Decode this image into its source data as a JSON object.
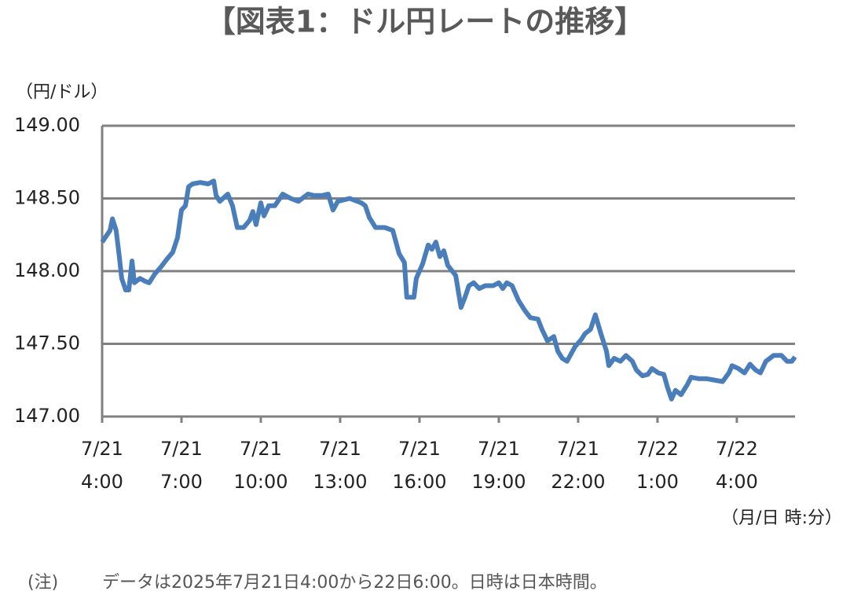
{
  "chart_data": {
    "type": "line",
    "title": "【図表1：ドル円レートの推移】",
    "y_label": "（円/ドル）",
    "x_label": "（月/日 時:分）",
    "note_label": "(注)",
    "note": "データは2025年7月21日4:00から22日6:00。日時は日本時間。",
    "xlim": [
      4,
      30.2
    ],
    "xticks": [
      {
        "value": 4,
        "label": "7/21\n4:00"
      },
      {
        "value": 7,
        "label": "7/21\n7:00"
      },
      {
        "value": 10,
        "label": "7/21\n10:00"
      },
      {
        "value": 13,
        "label": "7/21\n13:00"
      },
      {
        "value": 16,
        "label": "7/21\n16:00"
      },
      {
        "value": 19,
        "label": "7/21\n19:00"
      },
      {
        "value": 22,
        "label": "7/21\n22:00"
      },
      {
        "value": 25,
        "label": "7/22\n1:00"
      },
      {
        "value": 28,
        "label": "7/22\n4:00"
      }
    ],
    "ylim": [
      147,
      149
    ],
    "yticks": [
      {
        "value": 147,
        "label": "147.00"
      },
      {
        "value": 147.5,
        "label": "147.50"
      },
      {
        "value": 148,
        "label": "148.00"
      },
      {
        "value": 148.5,
        "label": "148.50"
      },
      {
        "value": 149,
        "label": "149.00"
      }
    ],
    "grid": true,
    "series": [
      {
        "color": "#4a7ebb",
        "x": [
          4.0,
          4.3,
          4.39,
          4.53,
          4.65,
          4.74,
          4.89,
          5.01,
          5.13,
          5.22,
          5.43,
          5.63,
          5.78,
          5.99,
          6.23,
          6.44,
          6.67,
          6.85,
          7.0,
          7.15,
          7.27,
          7.42,
          7.71,
          8.01,
          8.22,
          8.31,
          8.45,
          8.75,
          8.93,
          9.11,
          9.35,
          9.58,
          9.7,
          9.82,
          10.0,
          10.12,
          10.3,
          10.53,
          10.83,
          11.13,
          11.42,
          11.78,
          12.02,
          12.32,
          12.55,
          12.73,
          12.91,
          13.36,
          13.8,
          13.95,
          14.1,
          14.34,
          14.69,
          14.99,
          15.23,
          15.43,
          15.52,
          15.79,
          15.88,
          16.12,
          16.33,
          16.47,
          16.62,
          16.77,
          16.92,
          17.07,
          17.37,
          17.57,
          17.72,
          17.87,
          18.05,
          18.26,
          18.49,
          18.79,
          19.0,
          19.15,
          19.3,
          19.5,
          19.74,
          19.98,
          20.19,
          20.48,
          20.63,
          20.84,
          21.08,
          21.23,
          21.4,
          21.58,
          21.88,
          22.12,
          22.26,
          22.47,
          22.65,
          22.86,
          23.07,
          23.16,
          23.36,
          23.6,
          23.81,
          24.05,
          24.2,
          24.43,
          24.64,
          24.79,
          25.03,
          25.24,
          25.38,
          25.53,
          25.68,
          25.89,
          26.13,
          26.27,
          26.57,
          26.87,
          27.17,
          27.46,
          27.7,
          27.82,
          28.06,
          28.29,
          28.5,
          28.71,
          28.89,
          29.1,
          29.39,
          29.69,
          29.9,
          30.08,
          30.2
        ],
        "values": [
          148.2,
          148.28,
          148.36,
          148.28,
          148.1,
          147.95,
          147.87,
          147.87,
          148.07,
          147.92,
          147.95,
          147.93,
          147.92,
          147.98,
          148.03,
          148.08,
          148.13,
          148.23,
          148.42,
          148.45,
          148.58,
          148.6,
          148.61,
          148.6,
          148.62,
          148.52,
          148.48,
          148.53,
          148.45,
          148.3,
          148.3,
          148.35,
          148.41,
          148.32,
          148.47,
          148.38,
          148.45,
          148.45,
          148.53,
          148.5,
          148.48,
          148.53,
          148.52,
          148.52,
          148.53,
          148.42,
          148.48,
          148.5,
          148.47,
          148.45,
          148.37,
          148.3,
          148.3,
          148.28,
          148.12,
          148.06,
          147.82,
          147.82,
          147.95,
          148.05,
          148.18,
          148.15,
          148.2,
          148.1,
          148.14,
          148.04,
          147.97,
          147.75,
          147.82,
          147.9,
          147.92,
          147.88,
          147.9,
          147.9,
          147.92,
          147.88,
          147.92,
          147.9,
          147.8,
          147.73,
          147.68,
          147.67,
          147.6,
          147.52,
          147.55,
          147.45,
          147.4,
          147.38,
          147.48,
          147.53,
          147.57,
          147.6,
          147.7,
          147.57,
          147.45,
          147.35,
          147.4,
          147.38,
          147.42,
          147.38,
          147.32,
          147.28,
          147.29,
          147.33,
          147.3,
          147.29,
          147.2,
          147.12,
          147.18,
          147.15,
          147.22,
          147.27,
          147.26,
          147.26,
          147.25,
          147.24,
          147.3,
          147.35,
          147.33,
          147.3,
          147.36,
          147.32,
          147.3,
          147.38,
          147.42,
          147.42,
          147.38,
          147.38,
          147.41
        ]
      }
    ]
  }
}
